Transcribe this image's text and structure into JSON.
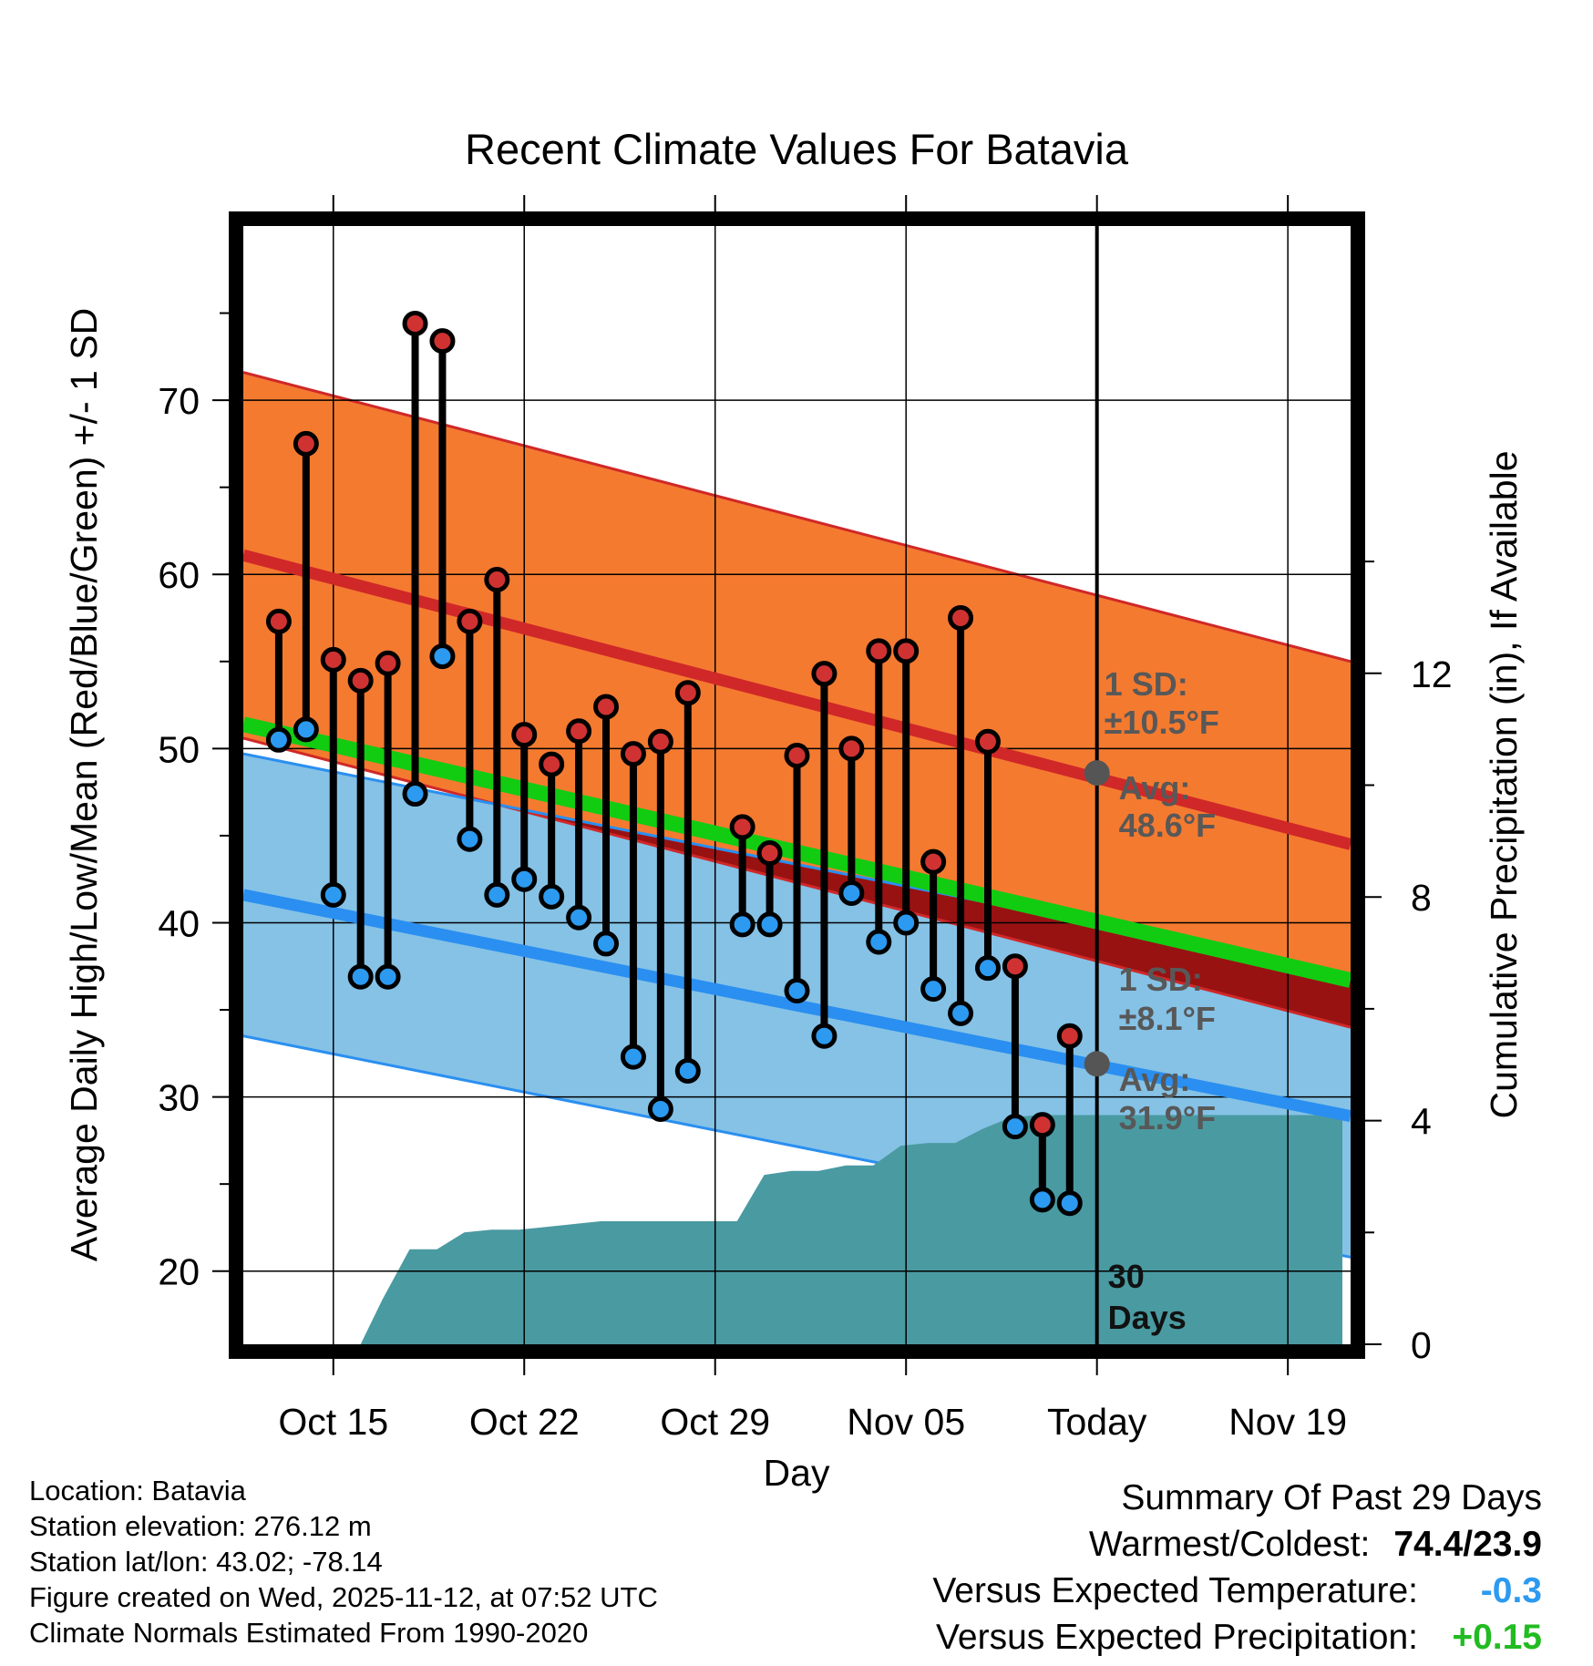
{
  "chart_data": {
    "type": "line",
    "title": "Recent Climate Values For Batavia",
    "xlabel": "Day",
    "ylabel": "Average Daily High/Low/Mean (Red/Blue/Green) +/- 1 SD",
    "y2label": "Cumulative Precipitation (in), If Available",
    "ylim": [
      15.8,
      80
    ],
    "y2lim": [
      0,
      20
    ],
    "xlim": [
      -3.3,
      37.3
    ],
    "x_tick_labels": [
      "Oct 15",
      "Oct 22",
      "Oct 29",
      "Nov 05",
      "Today",
      "Nov 19"
    ],
    "x_tick_days": [
      0,
      7,
      14,
      21,
      28,
      35
    ],
    "y_ticks": [
      "20",
      "30",
      "40",
      "50",
      "60",
      "70"
    ],
    "y2_ticks": [
      "0",
      "4",
      "8",
      "12"
    ],
    "today_day": 28,
    "today_label": "30\nDays",
    "normal_high": {
      "start": 61.1,
      "end": 44.5,
      "sd": 10.5,
      "label_sd": "1 SD:",
      "label_sd_value": "±10.5°F",
      "label_avg": "Avg:",
      "label_avg_value": "48.6°F",
      "avg_today": 48.6
    },
    "normal_low": {
      "start": 41.6,
      "end": 28.9,
      "sd": 8.1,
      "label_sd": "1 SD:",
      "label_sd_value": "±8.1°F",
      "label_avg": "Avg:",
      "label_avg_value": "31.9°F",
      "avg_today": 31.9
    },
    "normal_mean": {
      "start": 51.4,
      "end": 36.7
    },
    "days": [
      -2,
      -1,
      0,
      1,
      2,
      3,
      4,
      5,
      6,
      7,
      8,
      9,
      10,
      11,
      12,
      13,
      15,
      16,
      17,
      18,
      19,
      20,
      21,
      22,
      23,
      24,
      25,
      26,
      27
    ],
    "highs": [
      57.3,
      67.5,
      55.1,
      53.9,
      54.9,
      74.4,
      73.4,
      57.3,
      59.7,
      50.8,
      49.1,
      51.0,
      52.4,
      49.7,
      50.4,
      53.2,
      45.5,
      44.0,
      49.6,
      54.3,
      50.0,
      55.6,
      55.6,
      43.5,
      57.5,
      50.4,
      37.5,
      28.4,
      33.5
    ],
    "lows": [
      50.5,
      51.1,
      41.6,
      36.9,
      36.9,
      47.4,
      55.3,
      44.8,
      41.6,
      42.5,
      41.5,
      40.3,
      38.8,
      32.3,
      29.3,
      31.5,
      39.9,
      39.9,
      36.1,
      33.5,
      41.7,
      38.9,
      40.0,
      36.2,
      34.8,
      37.4,
      28.3,
      24.1,
      23.9
    ],
    "precip_cumulative": [
      [
        -2,
        0
      ],
      [
        1,
        0
      ],
      [
        1.8,
        0.8
      ],
      [
        2.8,
        1.7
      ],
      [
        3.8,
        1.7
      ],
      [
        4.8,
        2.0
      ],
      [
        5.8,
        2.05
      ],
      [
        6.8,
        2.05
      ],
      [
        7.8,
        2.1
      ],
      [
        8.8,
        2.15
      ],
      [
        9.8,
        2.2
      ],
      [
        10.8,
        2.2
      ],
      [
        11.8,
        2.2
      ],
      [
        12.8,
        2.2
      ],
      [
        13.8,
        2.2
      ],
      [
        14.8,
        2.2
      ],
      [
        15.8,
        3.03
      ],
      [
        16.8,
        3.1
      ],
      [
        17.8,
        3.1
      ],
      [
        18.8,
        3.2
      ],
      [
        19.8,
        3.2
      ],
      [
        20.8,
        3.55
      ],
      [
        21.8,
        3.6
      ],
      [
        22.8,
        3.6
      ],
      [
        23.8,
        3.85
      ],
      [
        24.8,
        4.05
      ],
      [
        25.8,
        4.1
      ],
      [
        26.8,
        4.1
      ],
      [
        37,
        4.1
      ]
    ]
  },
  "footer": {
    "location": "Location: Batavia",
    "elevation": "Station elevation: 276.12 m",
    "latlon": "Station lat/lon: 43.02; -78.14",
    "created": "Figure created on Wed, 2025-11-12, at 07:52 UTC",
    "normals": "Climate Normals Estimated From 1990-2020"
  },
  "summary": {
    "title": "Summary Of Past 29 Days",
    "warm_cold_label": "Warmest/Coldest:",
    "warm_cold_value": "74.4/23.9",
    "temp_label": "Versus Expected Temperature:",
    "temp_value": "-0.3",
    "precip_label": "Versus Expected Precipitation:",
    "precip_value": "+0.15"
  },
  "colors": {
    "high_band": "#f47a30",
    "high_line": "#d02828",
    "low_band": "#85c2e6",
    "low_line": "#2a8ff0",
    "mean_line": "#12cc12",
    "dark_red": "#981212",
    "precip": "#4a9aa2",
    "high_marker": "#d03232",
    "low_marker": "#2c9af0",
    "label_gray": "#585858",
    "temp_summary": "#2c9af0",
    "precip_summary": "#22bb22"
  }
}
